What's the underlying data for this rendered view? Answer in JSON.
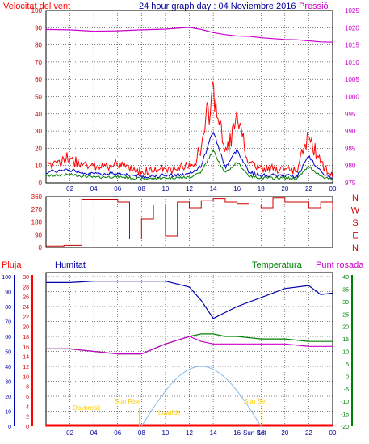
{
  "header": {
    "left_label": "Velocitat del vent",
    "title": "24 hour graph day : 04 Noviembre 2016",
    "right_label": "Pressió"
  },
  "wind_panel": {
    "left_ticks": [
      "100",
      "90",
      "80",
      "70",
      "60",
      "50",
      "40",
      "30",
      "20",
      "10",
      "0"
    ],
    "right_ticks": [
      "1025",
      "1020",
      "1015",
      "1010",
      "1005",
      "1000",
      "995",
      "990",
      "985",
      "980",
      "975"
    ]
  },
  "direction_panel": {
    "ticks": [
      "360",
      "270",
      "180",
      "90",
      "0"
    ],
    "compass": [
      "N",
      "W",
      "S",
      "E",
      "N"
    ]
  },
  "bottom_header": {
    "rain": "Pluja",
    "humidity": "Humitat",
    "temperature": "Temperatura",
    "dewpoint": "Punt rosada"
  },
  "bottom_panel": {
    "rain_ticks": [
      "30",
      "28",
      "26",
      "24",
      "22",
      "20",
      "18",
      "16",
      "14",
      "12",
      "10",
      "8",
      "6",
      "4",
      "2",
      "0"
    ],
    "humidity_ticks": [
      "100",
      "90",
      "80",
      "70",
      "60",
      "50",
      "40",
      "30",
      "20",
      "10",
      "0"
    ],
    "temp_ticks": [
      "40",
      "35",
      "30",
      "25",
      "20",
      "15",
      "10",
      "5",
      "0",
      "-5",
      "-10",
      "-15",
      "-20"
    ],
    "sun_labels": {
      "daybreak": "Daybreak",
      "sunrise": "Sun Rise",
      "lowtide": "Lowtide",
      "sunset": "Sun Set",
      "sunset_axis": "Sun Set"
    }
  },
  "x_ticks": [
    "02",
    "04",
    "06",
    "08",
    "10",
    "12",
    "14",
    "16",
    "18",
    "20",
    "22",
    "00"
  ],
  "colors": {
    "wind_gust": "#ff0000",
    "wind_avg": "#0000cc",
    "wind_min": "#008000",
    "pressure": "#cc00cc",
    "direction": "#cc0000",
    "rain": "#ff0000",
    "humidity": "#0000aa",
    "temperature": "#008000",
    "dewpoint": "#cc00cc",
    "sun_arc": "#88bbee",
    "sun_text": "#ffcc00",
    "grid": "#000000"
  },
  "chart_data": [
    {
      "type": "line",
      "title": "24 hour graph day : 04 Noviembre 2016",
      "x": [
        0,
        2,
        4,
        6,
        8,
        10,
        12,
        13,
        14,
        15,
        16,
        17,
        18,
        20,
        21,
        22,
        23,
        24
      ],
      "series": [
        {
          "name": "Velocitat del vent",
          "values": [
            8,
            10,
            6,
            7,
            4,
            5,
            6,
            14,
            45,
            12,
            28,
            8,
            5,
            5,
            4,
            22,
            8,
            2
          ]
        },
        {
          "name": "Pressió",
          "values": [
            1019.5,
            1019.4,
            1019.0,
            1019.1,
            1019.4,
            1019.6,
            1020.1,
            1019.5,
            1018.6,
            1018.0,
            1017.6,
            1017.5,
            1017.1,
            1016.6,
            1016.5,
            1016.2,
            1015.9,
            1015.8
          ]
        }
      ],
      "ylim": [
        0,
        100
      ],
      "y2lim": [
        975,
        1025
      ],
      "xlim": [
        0,
        24
      ]
    },
    {
      "type": "scatter",
      "x": [
        0,
        0.7,
        1.5,
        3,
        5,
        6,
        7,
        8,
        9,
        10,
        11,
        12,
        13,
        14,
        15,
        16,
        17,
        18,
        19,
        20,
        21,
        22,
        23,
        24
      ],
      "values": [
        10,
        10,
        15,
        340,
        340,
        320,
        60,
        200,
        300,
        80,
        320,
        280,
        330,
        345,
        320,
        310,
        300,
        280,
        350,
        320,
        320,
        280,
        320,
        255
      ],
      "ylim": [
        0,
        360
      ],
      "xlim": [
        0,
        24
      ]
    },
    {
      "type": "line",
      "x": [
        0,
        2,
        4,
        6,
        8,
        10,
        12,
        13,
        14,
        15,
        16,
        18,
        20,
        22,
        23,
        24
      ],
      "series": [
        {
          "name": "Humitat",
          "values": [
            96,
            96,
            97,
            97,
            97,
            97,
            93,
            84,
            72,
            76,
            80,
            86,
            92,
            94,
            88,
            89
          ]
        },
        {
          "name": "Temperatura",
          "values": [
            11,
            11,
            10,
            9,
            9,
            13,
            16,
            17,
            17,
            16,
            16,
            15,
            15,
            14,
            14,
            14
          ]
        },
        {
          "name": "Punt rosada",
          "values": [
            11,
            11,
            10,
            9,
            9,
            13,
            16,
            14,
            13,
            13,
            13,
            13,
            13,
            12,
            12,
            12
          ]
        },
        {
          "name": "Pluja",
          "values": [
            0,
            0,
            0,
            0,
            0,
            0,
            0,
            0,
            0,
            0,
            0,
            0,
            0,
            0,
            0,
            0
          ]
        }
      ],
      "ylim": [
        0,
        100
      ],
      "y2lim": [
        -20,
        40
      ],
      "xlim": [
        0,
        24
      ]
    }
  ]
}
